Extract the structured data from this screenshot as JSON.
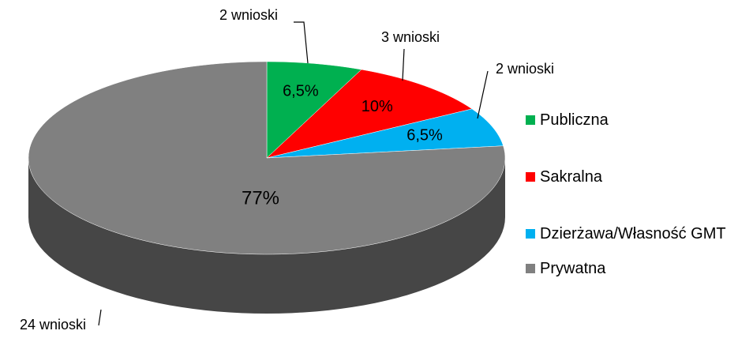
{
  "chart_data": {
    "type": "pie3d",
    "categories": [
      "Publiczna",
      "Sakralna",
      "Dzierżawa/Własność GMT",
      "Prywatna"
    ],
    "values": [
      6.5,
      10,
      6.5,
      77
    ],
    "value_labels": [
      "6,5%",
      "10%",
      "6,5%",
      "77%"
    ],
    "colors": [
      "#00b050",
      "#ff0000",
      "#00b0f0",
      "#808080"
    ],
    "annotations": [
      "2 wnioski",
      "3 wnioski",
      "2 wnioski",
      "24 wnioski"
    ],
    "legend": "right"
  }
}
